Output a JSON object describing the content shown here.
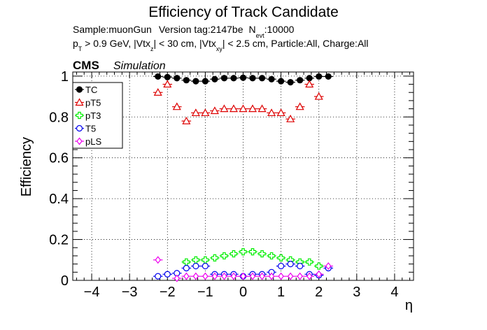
{
  "chart_data": {
    "type": "scatter",
    "title": "Efficiency of Track Candidate",
    "info_line1": {
      "sample": "Sample:muonGun",
      "version": "Version tag:2147be",
      "nevt_prefix": "N",
      "nevt_sub": "evt",
      "nevt_value": ":10000"
    },
    "info_line2": {
      "p": "p",
      "p_sub": "T",
      "part1": " > 0.9 GeV, |Vtx",
      "z_sub": "z",
      "part2": "| < 30 cm, |Vtx",
      "xy_sub": "xy",
      "part3": "| < 2.5 cm, Particle:All, Charge:All"
    },
    "cms_label": "CMS",
    "simulation_label": "Simulation",
    "xlabel": "η",
    "ylabel": "Efficiency",
    "xlim": [
      -4.5,
      4.5
    ],
    "ylim": [
      0,
      1.02
    ],
    "grid": true,
    "legend_position": "top-left",
    "x_ticks": [
      "−4",
      "−3",
      "−2",
      "−1",
      "0",
      "1",
      "2",
      "3",
      "4"
    ],
    "y_ticks": [
      "0",
      "0.2",
      "0.4",
      "0.6",
      "0.8",
      "1"
    ],
    "bin_width": 0.25,
    "x": [
      -2.25,
      -2.0,
      -1.75,
      -1.5,
      -1.25,
      -1.0,
      -0.75,
      -0.5,
      -0.25,
      0.0,
      0.25,
      0.5,
      0.75,
      1.0,
      1.25,
      1.5,
      1.75,
      2.0,
      2.25
    ],
    "series": [
      {
        "name": "TC",
        "color": "#000000",
        "marker": "filled-circle",
        "values": [
          0.998,
          0.995,
          0.99,
          0.98,
          0.975,
          0.975,
          0.985,
          0.99,
          0.99,
          0.992,
          0.99,
          0.99,
          0.985,
          0.975,
          0.97,
          0.98,
          0.99,
          0.998,
          0.998
        ]
      },
      {
        "name": "pT5",
        "color": "#dd0000",
        "marker": "open-triangle",
        "values": [
          0.92,
          0.96,
          0.85,
          0.78,
          0.82,
          0.82,
          0.83,
          0.84,
          0.84,
          0.84,
          0.84,
          0.84,
          0.82,
          0.82,
          0.79,
          0.85,
          0.96,
          0.9,
          null
        ]
      },
      {
        "name": "pT3",
        "color": "#00ee00",
        "marker": "open-cross",
        "values": [
          null,
          null,
          null,
          0.09,
          0.1,
          0.1,
          0.11,
          0.12,
          0.13,
          0.14,
          0.14,
          0.13,
          0.12,
          0.11,
          0.1,
          0.09,
          0.09,
          0.07,
          null
        ]
      },
      {
        "name": "T5",
        "color": "#0000ee",
        "marker": "open-circle",
        "values": [
          0.02,
          0.03,
          0.035,
          0.06,
          0.07,
          0.07,
          0.03,
          0.03,
          0.03,
          0.02,
          0.03,
          0.03,
          0.04,
          0.07,
          0.08,
          0.07,
          0.03,
          0.025,
          0.06
        ]
      },
      {
        "name": "pLS",
        "color": "#ee00ee",
        "marker": "open-diamond",
        "values": [
          0.1,
          null,
          0.01,
          0.02,
          0.02,
          0.02,
          0.02,
          0.02,
          0.02,
          0.02,
          0.02,
          0.02,
          0.02,
          0.02,
          0.02,
          0.02,
          0.02,
          0.03,
          0.07
        ]
      }
    ]
  }
}
